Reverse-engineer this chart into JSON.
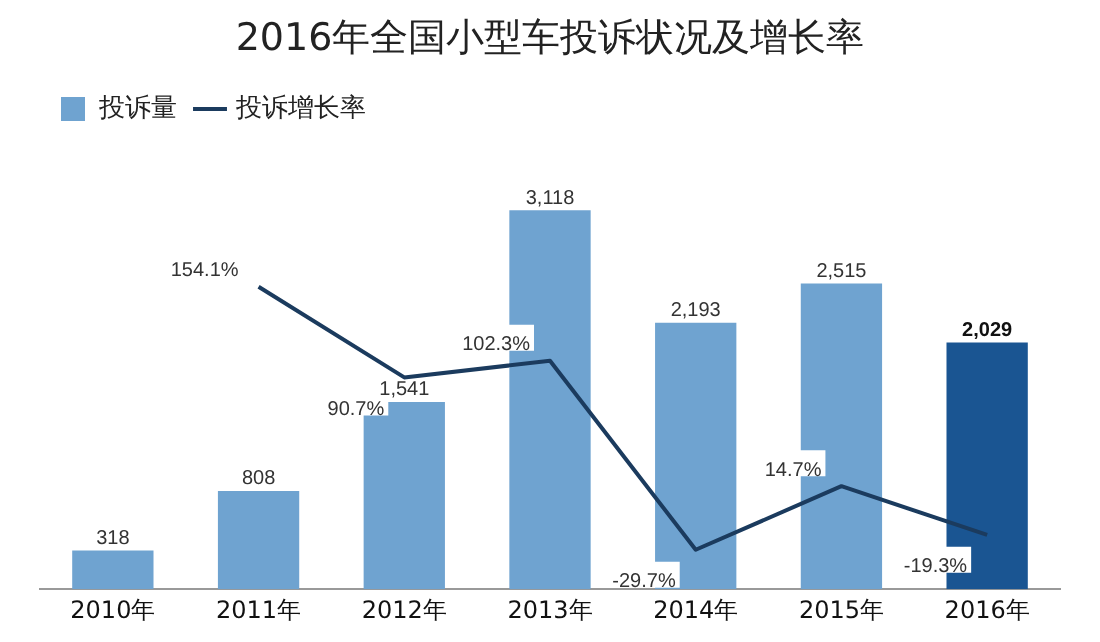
{
  "chart_data": {
    "type": "bar",
    "title": "2016年全国小型车投诉状况及增长率",
    "categories": [
      "2010年",
      "2011年",
      "2012年",
      "2013年",
      "2014年",
      "2015年",
      "2016年"
    ],
    "series": [
      {
        "name": "投诉量",
        "color": "#6fa3d0",
        "colors": [
          "#6fa3d0",
          "#6fa3d0",
          "#6fa3d0",
          "#6fa3d0",
          "#6fa3d0",
          "#6fa3d0",
          "#1a5592"
        ],
        "values": [
          318,
          808,
          1541,
          3118,
          2193,
          2515,
          2029
        ],
        "value_labels": [
          "318",
          "808",
          "1,541",
          "3,118",
          "2,193",
          "2,515",
          "2,029"
        ]
      },
      {
        "name": "投诉增长率",
        "type": "line",
        "axis": "y2",
        "color": "#1b3b5e",
        "values": [
          null,
          154.1,
          90.7,
          102.3,
          -29.7,
          14.7,
          -19.3
        ],
        "value_labels": [
          null,
          "154.1%",
          "90.7%",
          "102.3%",
          "-29.7%",
          "14.7%",
          "-19.3%"
        ]
      }
    ],
    "data_labels": true,
    "legend": "top left",
    "grid": false,
    "marker": "none",
    "line_style": "solid"
  }
}
